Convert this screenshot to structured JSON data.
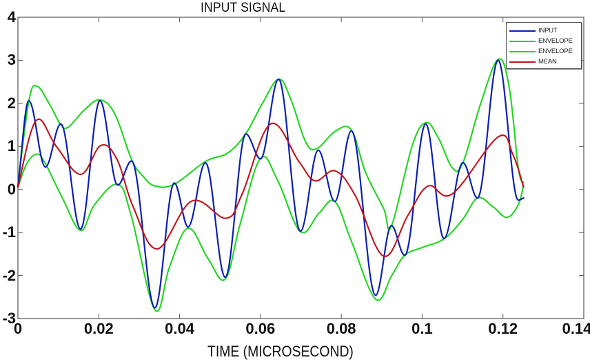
{
  "chart_data": {
    "type": "line",
    "title": "INPUT SIGNAL",
    "xlabel": "TIME (MICROSECOND)",
    "ylabel": "",
    "xlim": [
      0,
      0.14
    ],
    "ylim": [
      -3,
      4
    ],
    "xticks": [
      0,
      0.02,
      0.04,
      0.06,
      0.08,
      0.1,
      0.12,
      0.14
    ],
    "xtick_labels": [
      "0",
      "0.02",
      "0.04",
      "0.06",
      "0.08",
      "0.1",
      "0.12",
      "0.14"
    ],
    "yticks": [
      -3,
      -2,
      -1,
      0,
      1,
      2,
      3,
      4
    ],
    "ytick_labels": [
      "-3",
      "-2",
      "-1",
      "0",
      "1",
      "2",
      "3",
      "4"
    ],
    "grid": false,
    "legend_position": "upper right",
    "series": [
      {
        "name": "INPUT",
        "color": "#0a1fb4",
        "points": [
          [
            0,
            0.07
          ],
          [
            0.0027,
            2.06
          ],
          [
            0.0068,
            0.52
          ],
          [
            0.0106,
            1.52
          ],
          [
            0.0155,
            -0.92
          ],
          [
            0.0203,
            2.06
          ],
          [
            0.0247,
            0.1
          ],
          [
            0.0281,
            0.66
          ],
          [
            0.0339,
            -2.75
          ],
          [
            0.0387,
            0.15
          ],
          [
            0.0421,
            -0.87
          ],
          [
            0.0464,
            0.62
          ],
          [
            0.0513,
            -2.04
          ],
          [
            0.0564,
            1.29
          ],
          [
            0.06,
            0.71
          ],
          [
            0.0645,
            2.56
          ],
          [
            0.0699,
            -0.97
          ],
          [
            0.0743,
            0.91
          ],
          [
            0.0784,
            -0.28
          ],
          [
            0.0825,
            1.36
          ],
          [
            0.0885,
            -2.46
          ],
          [
            0.0924,
            -0.84
          ],
          [
            0.0957,
            -1.53
          ],
          [
            0.1009,
            1.52
          ],
          [
            0.1054,
            -1.14
          ],
          [
            0.1101,
            0.62
          ],
          [
            0.1137,
            -0.2
          ],
          [
            0.1188,
            3.0
          ],
          [
            0.1238,
            -0.25
          ],
          [
            0.1251,
            -0.2
          ]
        ]
      },
      {
        "name": "ENVELOPE",
        "color": "#1fd61f",
        "points": [
          [
            0,
            0.1
          ],
          [
            0.0027,
            2.05
          ],
          [
            0.0047,
            2.4
          ],
          [
            0.008,
            1.95
          ],
          [
            0.0106,
            1.5
          ],
          [
            0.0125,
            1.45
          ],
          [
            0.0165,
            1.85
          ],
          [
            0.0203,
            2.08
          ],
          [
            0.024,
            1.75
          ],
          [
            0.0281,
            0.7
          ],
          [
            0.031,
            0.3
          ],
          [
            0.0339,
            0.08
          ],
          [
            0.0387,
            0.12
          ],
          [
            0.0464,
            0.65
          ],
          [
            0.052,
            0.85
          ],
          [
            0.0564,
            1.3
          ],
          [
            0.0605,
            2.0
          ],
          [
            0.0645,
            2.56
          ],
          [
            0.0675,
            2.1
          ],
          [
            0.0712,
            1.1
          ],
          [
            0.074,
            0.95
          ],
          [
            0.0785,
            1.35
          ],
          [
            0.0825,
            1.38
          ],
          [
            0.086,
            0.4
          ],
          [
            0.0905,
            -0.45
          ],
          [
            0.0924,
            -0.85
          ],
          [
            0.0975,
            1.0
          ],
          [
            0.1009,
            1.55
          ],
          [
            0.104,
            1.2
          ],
          [
            0.1075,
            0.5
          ],
          [
            0.1101,
            0.62
          ],
          [
            0.1145,
            2.0
          ],
          [
            0.1188,
            3.02
          ],
          [
            0.1215,
            2.4
          ],
          [
            0.1238,
            0.5
          ],
          [
            0.1251,
            0.15
          ]
        ]
      },
      {
        "name": "ENVELOPE",
        "color": "#1fd61f",
        "points": [
          [
            0,
            0.05
          ],
          [
            0.0022,
            0.6
          ],
          [
            0.0047,
            0.82
          ],
          [
            0.0068,
            0.6
          ],
          [
            0.011,
            -0.2
          ],
          [
            0.0155,
            -0.95
          ],
          [
            0.019,
            -0.35
          ],
          [
            0.0247,
            0.12
          ],
          [
            0.028,
            -0.6
          ],
          [
            0.0339,
            -2.8
          ],
          [
            0.0375,
            -1.8
          ],
          [
            0.0421,
            -0.9
          ],
          [
            0.047,
            -1.6
          ],
          [
            0.0513,
            -2.08
          ],
          [
            0.055,
            -0.8
          ],
          [
            0.06,
            0.72
          ],
          [
            0.0643,
            0.2
          ],
          [
            0.0699,
            -0.98
          ],
          [
            0.0745,
            -0.55
          ],
          [
            0.0784,
            -0.28
          ],
          [
            0.0825,
            -1.2
          ],
          [
            0.0885,
            -2.55
          ],
          [
            0.0925,
            -2.0
          ],
          [
            0.0957,
            -1.53
          ],
          [
            0.1,
            -1.35
          ],
          [
            0.1054,
            -1.15
          ],
          [
            0.11,
            -0.7
          ],
          [
            0.1137,
            -0.2
          ],
          [
            0.1175,
            -0.4
          ],
          [
            0.121,
            -0.65
          ],
          [
            0.1238,
            -0.35
          ],
          [
            0.1251,
            0.1
          ]
        ]
      },
      {
        "name": "MEAN",
        "color": "#c0141c",
        "points": [
          [
            0,
            0.05
          ],
          [
            0.0045,
            1.6
          ],
          [
            0.0095,
            1.0
          ],
          [
            0.0155,
            0.35
          ],
          [
            0.0205,
            1.02
          ],
          [
            0.0245,
            0.7
          ],
          [
            0.0285,
            -0.4
          ],
          [
            0.0345,
            -1.38
          ],
          [
            0.043,
            -0.27
          ],
          [
            0.0515,
            -0.67
          ],
          [
            0.0555,
            -0.1
          ],
          [
            0.0625,
            1.52
          ],
          [
            0.0695,
            0.65
          ],
          [
            0.0735,
            0.2
          ],
          [
            0.0785,
            0.43
          ],
          [
            0.0835,
            -0.15
          ],
          [
            0.0905,
            -1.55
          ],
          [
            0.0965,
            -0.6
          ],
          [
            0.1015,
            0.08
          ],
          [
            0.1075,
            -0.1
          ],
          [
            0.1188,
            1.22
          ],
          [
            0.1225,
            0.8
          ],
          [
            0.1251,
            0.05
          ]
        ]
      }
    ]
  },
  "legend": {
    "items": [
      {
        "label": "INPUT",
        "color": "#0a1fb4"
      },
      {
        "label": "ENVELOPE",
        "color": "#1fd61f"
      },
      {
        "label": "ENVELOPE",
        "color": "#1fd61f"
      },
      {
        "label": "MEAN",
        "color": "#c0141c"
      }
    ]
  }
}
